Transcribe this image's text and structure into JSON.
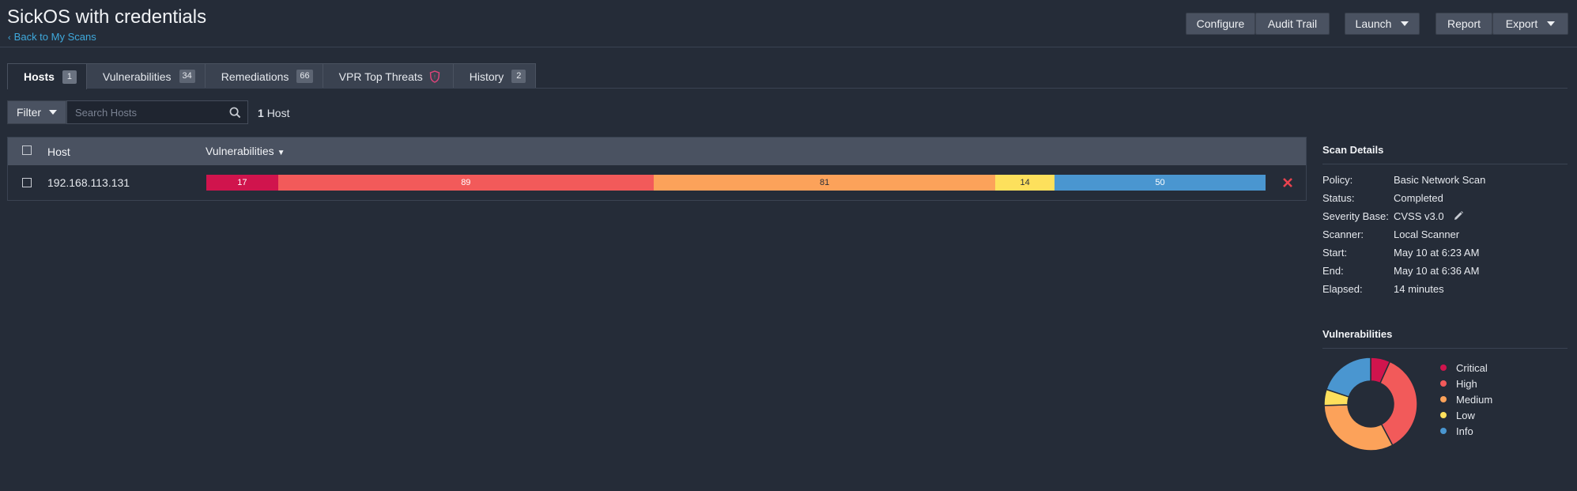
{
  "header": {
    "title": "SickOS with credentials",
    "back_link": "Back to My Scans",
    "buttons": {
      "configure": "Configure",
      "audit_trail": "Audit Trail",
      "launch": "Launch",
      "report": "Report",
      "export": "Export"
    }
  },
  "tabs": [
    {
      "label": "Hosts",
      "count": "1"
    },
    {
      "label": "Vulnerabilities",
      "count": "34"
    },
    {
      "label": "Remediations",
      "count": "66"
    },
    {
      "label": "VPR Top Threats",
      "icon": "shield-icon"
    },
    {
      "label": "History",
      "count": "2"
    }
  ],
  "filter": {
    "button_label": "Filter",
    "search_placeholder": "Search Hosts",
    "count_number": "1",
    "count_label": "Host"
  },
  "table": {
    "columns": {
      "host": "Host",
      "vulnerabilities": "Vulnerabilities"
    },
    "rows": [
      {
        "host": "192.168.113.131",
        "segments": [
          {
            "severity": "critical",
            "value": 17
          },
          {
            "severity": "high",
            "value": 89
          },
          {
            "severity": "medium",
            "value": 81
          },
          {
            "severity": "low",
            "value": 14
          },
          {
            "severity": "info",
            "value": 50
          }
        ]
      }
    ]
  },
  "scan_details": {
    "title": "Scan Details",
    "rows": [
      {
        "key": "Policy:",
        "value": "Basic Network Scan"
      },
      {
        "key": "Status:",
        "value": "Completed"
      },
      {
        "key": "Severity Base:",
        "value": "CVSS v3.0"
      },
      {
        "key": "Scanner:",
        "value": "Local Scanner"
      },
      {
        "key": "Start:",
        "value": "May 10 at 6:23 AM"
      },
      {
        "key": "End:",
        "value": "May 10 at 6:36 AM"
      },
      {
        "key": "Elapsed:",
        "value": "14 minutes"
      }
    ]
  },
  "vulnerabilities_panel": {
    "title": "Vulnerabilities",
    "legend": [
      "Critical",
      "High",
      "Medium",
      "Low",
      "Info"
    ]
  },
  "chart_data": {
    "type": "pie",
    "categories": [
      "Critical",
      "High",
      "Medium",
      "Low",
      "Info"
    ],
    "values": [
      17,
      89,
      81,
      14,
      50
    ],
    "legend_position": "right"
  },
  "colors": {
    "critical": "#d0144d",
    "high": "#f25a5a",
    "medium": "#fca25a",
    "low": "#fde05c",
    "info": "#4a96d0",
    "accent_link": "#3fa9dc",
    "background": "#252c38"
  }
}
